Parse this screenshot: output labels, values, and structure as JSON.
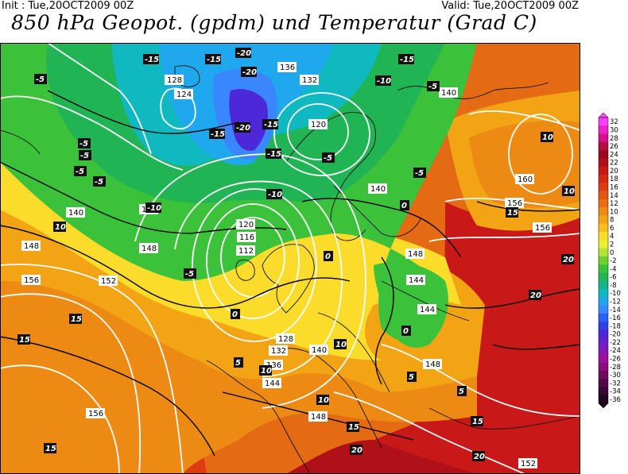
{
  "header": {
    "init": "Init : Tue,20OCT2009 00Z",
    "valid": "Valid: Tue,20OCT2009 00Z",
    "title": "850 hPa Geopot. (gpdm) und Temperatur (Grad C)"
  },
  "legend": {
    "labels": [
      "32",
      "30",
      "28",
      "26",
      "24",
      "22",
      "20",
      "18",
      "16",
      "14",
      "12",
      "10",
      "8",
      "6",
      "4",
      "2",
      "0",
      "-2",
      "-4",
      "-6",
      "-8",
      "-10",
      "-12",
      "-14",
      "-16",
      "-18",
      "-20",
      "-22",
      "-24",
      "-26",
      "-28",
      "-30",
      "-32",
      "-34",
      "-36"
    ],
    "colors": [
      "#ff40ff",
      "#ee20c8",
      "#d4108c",
      "#b40d42",
      "#9c0820",
      "#b01018",
      "#c81818",
      "#d42a14",
      "#de3c10",
      "#e45612",
      "#e86e10",
      "#ec8a14",
      "#f2a414",
      "#f8c01c",
      "#fcdc2a",
      "#e8f030",
      "#b4e430",
      "#6cd230",
      "#3cc23a",
      "#20b454",
      "#16b48a",
      "#10b8c0",
      "#20a8ee",
      "#3a86ff",
      "#2860f6",
      "#3040e8",
      "#4c28d8",
      "#6a20c8",
      "#8418b4",
      "#9c109c",
      "#8c0c7e",
      "#6c0a62",
      "#500848",
      "#380634",
      "#200420"
    ]
  },
  "map": {
    "geopotential_labels": [
      "112",
      "116",
      "120",
      "124",
      "128",
      "132",
      "136",
      "140",
      "144",
      "148",
      "152",
      "156",
      "160"
    ],
    "temperature_labels": [
      "-20",
      "-15",
      "-10",
      "-5",
      "0",
      "5",
      "10",
      "15",
      "20"
    ]
  }
}
